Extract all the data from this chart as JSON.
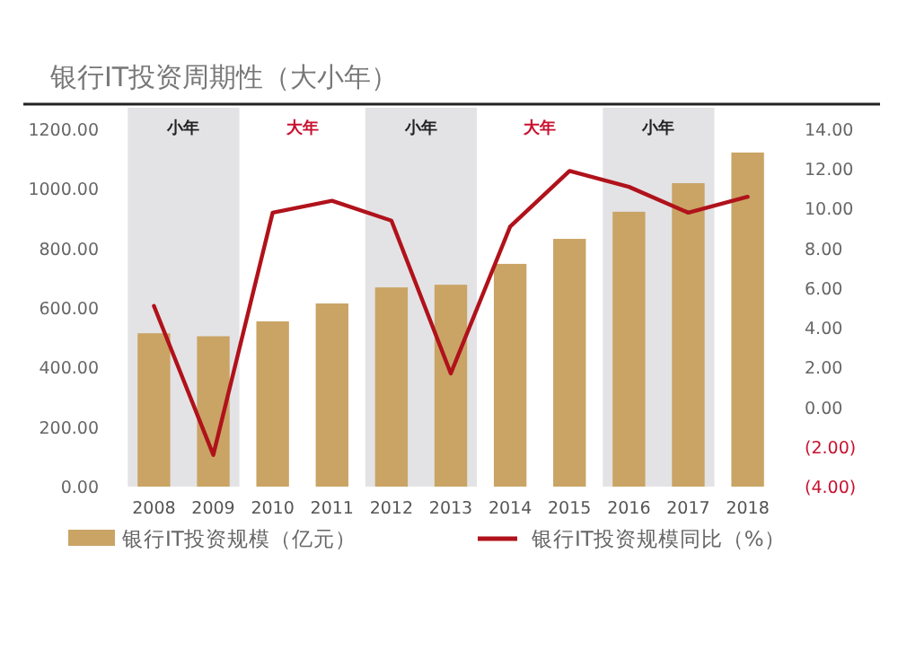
{
  "chart_data": {
    "type": "bar",
    "title": "银行IT投资周期性（大小年）",
    "categories": [
      "2008",
      "2009",
      "2010",
      "2011",
      "2012",
      "2013",
      "2014",
      "2015",
      "2016",
      "2017",
      "2018"
    ],
    "series": [
      {
        "name": "银行IT投资规模（亿元）",
        "color": "#c9a465",
        "values": [
          515,
          505,
          555,
          615,
          669,
          678,
          748,
          832,
          923,
          1019,
          1122
        ]
      },
      {
        "name": "银行IT投资规模同比（%）",
        "type": "line",
        "axis": "y2",
        "color": "#b0121b",
        "values": [
          5.1,
          -2.4,
          9.8,
          10.4,
          9.4,
          1.7,
          9.1,
          11.9,
          11.1,
          9.8,
          10.6
        ]
      }
    ],
    "ylim": [
      0,
      1200
    ],
    "yticks": [
      {
        "value": 0,
        "label": "0.00"
      },
      {
        "value": 200,
        "label": "200.00"
      },
      {
        "value": 400,
        "label": "400.00"
      },
      {
        "value": 600,
        "label": "600.00"
      },
      {
        "value": 800,
        "label": "800.00"
      },
      {
        "value": 1000,
        "label": "1000.00"
      },
      {
        "value": 1200,
        "label": "1200.00"
      }
    ],
    "y2lim": [
      -4,
      14
    ],
    "y2ticks": [
      {
        "value": -4,
        "label": "(4.00)"
      },
      {
        "value": -2,
        "label": "(2.00)"
      },
      {
        "value": 0,
        "label": "0.00"
      },
      {
        "value": 2,
        "label": "2.00"
      },
      {
        "value": 4,
        "label": "4.00"
      },
      {
        "value": 6,
        "label": "6.00"
      },
      {
        "value": 8,
        "label": "8.00"
      },
      {
        "value": 10,
        "label": "10.00"
      },
      {
        "value": 12,
        "label": "12.00"
      },
      {
        "value": 14,
        "label": "14.00"
      }
    ],
    "bands": [
      {
        "axis": "x",
        "from": "2008",
        "to": "2009",
        "label": "小年",
        "color": "#e3e3e5"
      },
      {
        "axis": "x",
        "from": "2012",
        "to": "2013",
        "label": "小年",
        "color": "#e3e3e5"
      },
      {
        "axis": "x",
        "from": "2016",
        "to": "2017",
        "label": "小年",
        "color": "#e3e3e5"
      }
    ],
    "annotations": [
      "大年",
      "大年"
    ],
    "legend": "bottom"
  }
}
